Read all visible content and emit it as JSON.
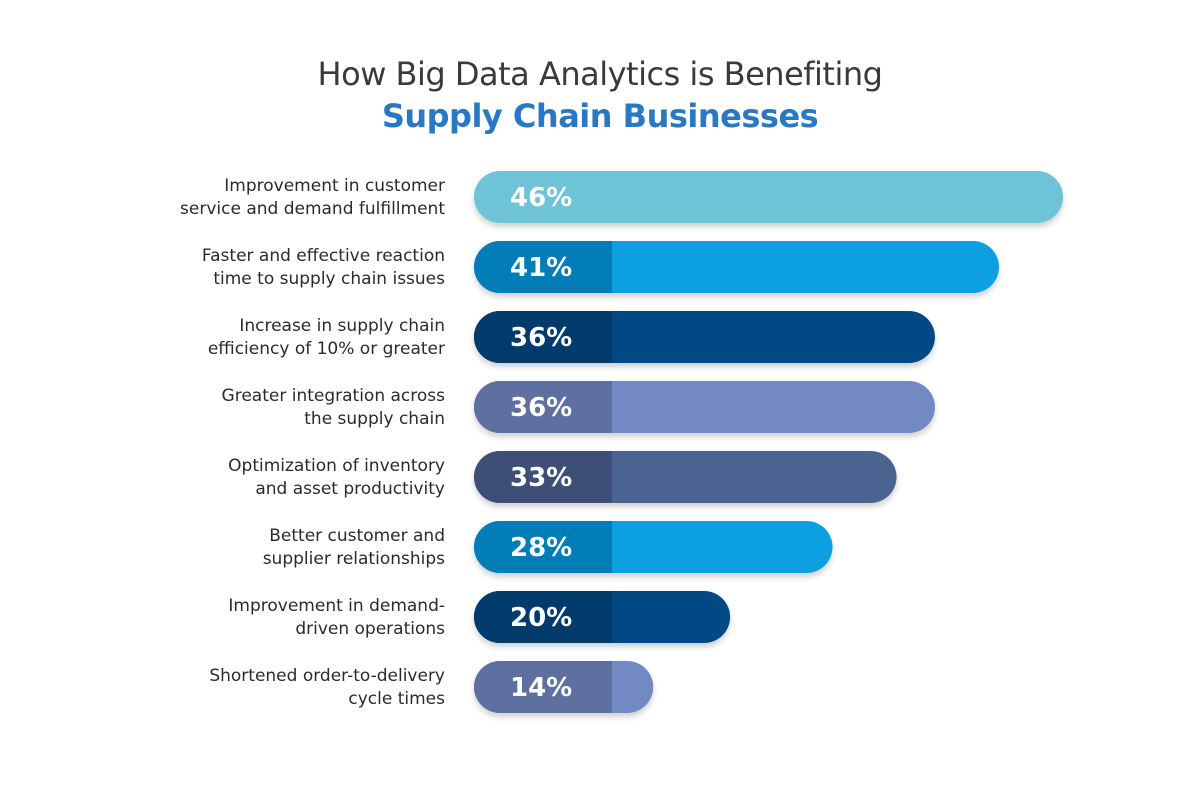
{
  "title_line1": "How Big Data Analytics is Benefiting",
  "title_line2": "Supply Chain Businesses",
  "chart_data": {
    "type": "bar",
    "orientation": "horizontal",
    "categories": [
      [
        "Improvement in customer",
        "service and demand fulfillment"
      ],
      [
        "Faster and effective reaction",
        "time to supply chain issues"
      ],
      [
        "Increase in supply chain",
        "efficiency of 10% or greater"
      ],
      [
        "Greater integration across",
        "the supply chain"
      ],
      [
        "Optimization of inventory",
        "and asset productivity"
      ],
      [
        "Better customer and",
        "supplier relationships"
      ],
      [
        "Improvement in demand-",
        "driven operations"
      ],
      [
        "Shortened order-to-delivery",
        "cycle times"
      ]
    ],
    "values": [
      46,
      41,
      36,
      36,
      33,
      28,
      20,
      14
    ],
    "value_labels": [
      "46%",
      "41%",
      "36%",
      "36%",
      "33%",
      "28%",
      "20%",
      "14%"
    ],
    "unit": "%",
    "bar_colors": [
      "#6ec3d6",
      "#07a0e0",
      "#044a85",
      "#7389c4",
      "#4b6390",
      "#07a0e0",
      "#044a85",
      "#7389c4"
    ],
    "shade_colors": [
      "#6ec3d6",
      "#057cb6",
      "#033a6c",
      "#5d6f9f",
      "#3d5077",
      "#057cb6",
      "#033a6c",
      "#5d6f9f"
    ],
    "grid": false,
    "legend": "none"
  }
}
